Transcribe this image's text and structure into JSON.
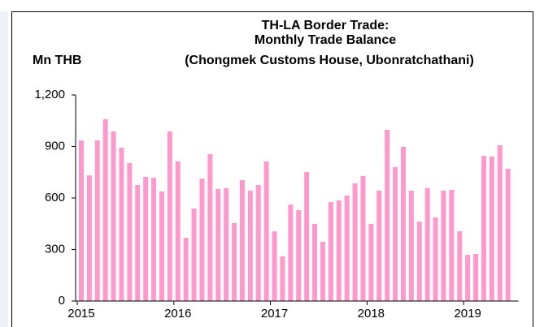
{
  "chart_data": {
    "type": "bar",
    "title": [
      "TH-LA Border Trade:",
      "Monthly Trade Balance",
      "(Chongmek Customs House, Ubonratchathani)"
    ],
    "y_label": "Mn THB",
    "categories": [
      "2015",
      null,
      null,
      null,
      null,
      null,
      null,
      null,
      null,
      null,
      null,
      null,
      "2016",
      null,
      null,
      null,
      null,
      null,
      null,
      null,
      null,
      null,
      null,
      null,
      "2017",
      null,
      null,
      null,
      null,
      null,
      null,
      null,
      null,
      null,
      null,
      null,
      "2018",
      null,
      null,
      null,
      null,
      null,
      null,
      null,
      null,
      null,
      null,
      null,
      "2019",
      null,
      null,
      null,
      null,
      null
    ],
    "values": [
      935,
      732,
      935,
      1058,
      987,
      893,
      803,
      676,
      723,
      718,
      638,
      987,
      813,
      368,
      539,
      713,
      855,
      652,
      657,
      454,
      704,
      643,
      676,
      813,
      406,
      260,
      562,
      529,
      751,
      449,
      345,
      576,
      586,
      614,
      685,
      728,
      449,
      643,
      997,
      780,
      898,
      643,
      463,
      657,
      487,
      643,
      647,
      406,
      269,
      274,
      846,
      841,
      907,
      770
    ],
    "color": "#ff99cc",
    "ylim": [
      0,
      1200
    ],
    "yticks": [
      0,
      300,
      600,
      900,
      {
        "value": 1200,
        "label": "1,200"
      }
    ]
  }
}
